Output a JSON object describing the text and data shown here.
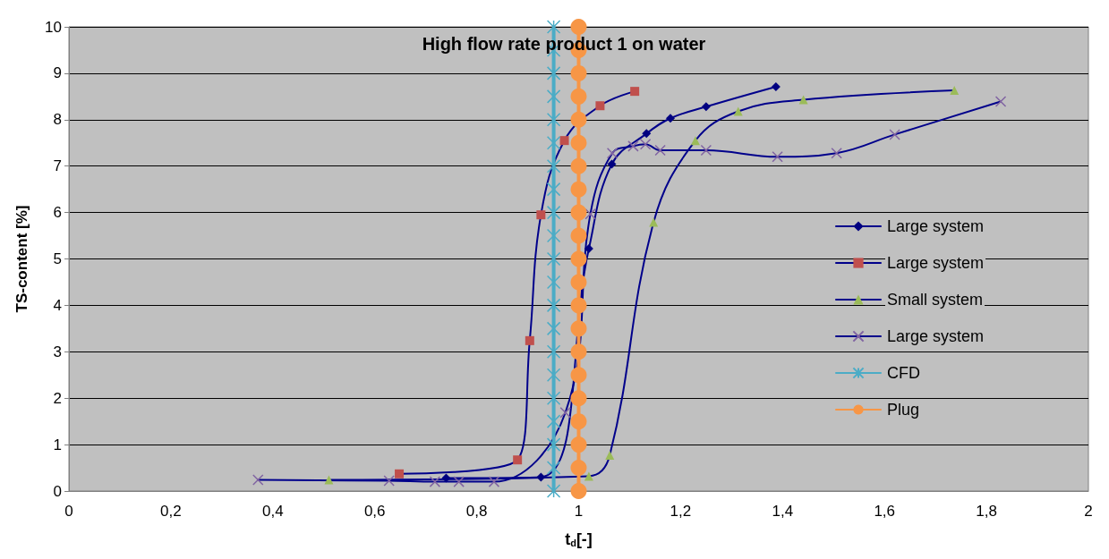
{
  "chart_data": {
    "type": "line",
    "title": "High flow rate product 1 on water",
    "xlabel": "t$_{d}$[-]",
    "ylabel": "TS-content [%]",
    "xlim": [
      0,
      2
    ],
    "xticks": [
      0,
      {
        "value": 0.2,
        "label": "0,2"
      },
      {
        "value": 0.4,
        "label": "0,4"
      },
      {
        "value": 0.6,
        "label": "0,6"
      },
      {
        "value": 0.8,
        "label": "0,8"
      },
      1,
      {
        "value": 1.2,
        "label": "1,2"
      },
      {
        "value": 1.4,
        "label": "1,4"
      },
      {
        "value": 1.6,
        "label": "1,6"
      },
      {
        "value": 1.8,
        "label": "1,8"
      },
      2
    ],
    "ylim": [
      0,
      10
    ],
    "yticks": [
      0,
      1,
      2,
      3,
      4,
      5,
      6,
      7,
      8,
      9,
      10
    ],
    "grid": "y",
    "legend": "right",
    "line_style": "solid",
    "series": [
      {
        "name": "Large system",
        "color": "#000080",
        "marker": "diamond",
        "x": [
          0.74,
          0.926,
          1.02,
          1.065,
          1.133,
          1.18,
          1.25,
          1.387
        ],
        "values": [
          0.28,
          0.3,
          5.22,
          7.04,
          7.7,
          8.03,
          8.28,
          8.71
        ]
      },
      {
        "name": "Large system",
        "color": "#c0504d",
        "marker": "square",
        "x": [
          0.648,
          0.88,
          0.904,
          0.926,
          0.972,
          1.042,
          1.11
        ],
        "values": [
          0.37,
          0.67,
          3.24,
          5.95,
          7.55,
          8.3,
          8.61
        ]
      },
      {
        "name": "Small system",
        "color": "#9bbb59",
        "marker": "triangle",
        "x": [
          0.51,
          1.02,
          1.061,
          1.147,
          1.229,
          1.313,
          1.441,
          1.737
        ],
        "values": [
          0.24,
          0.32,
          0.77,
          5.79,
          7.55,
          8.18,
          8.43,
          8.63
        ]
      },
      {
        "name": "Large system",
        "color": "#8064a2",
        "marker": "cross",
        "x": [
          0.371,
          0.628,
          0.718,
          0.765,
          0.834,
          0.974,
          1.023,
          1.066,
          1.107,
          1.131,
          1.16,
          1.25,
          1.39,
          1.506,
          1.62,
          1.828
        ],
        "values": [
          0.24,
          0.22,
          0.2,
          0.2,
          0.2,
          1.69,
          5.97,
          7.28,
          7.43,
          7.47,
          7.34,
          7.34,
          7.2,
          7.28,
          7.68,
          8.39
        ]
      },
      {
        "name": "CFD",
        "color": "#4bacc6",
        "marker": "star",
        "x": [
          0.951,
          0.951,
          0.951,
          0.951,
          0.951,
          0.951,
          0.951,
          0.951,
          0.951,
          0.951,
          0.951,
          0.951,
          0.951,
          0.951,
          0.951,
          0.951,
          0.951,
          0.951,
          0.951,
          0.951,
          0.951
        ],
        "values": [
          0,
          0.5,
          1,
          1.5,
          2,
          2.5,
          3,
          3.5,
          4,
          4.5,
          5,
          5.5,
          6,
          6.5,
          7,
          7.5,
          8,
          8.5,
          9,
          9.5,
          10
        ]
      },
      {
        "name": "Plug",
        "color": "#f79646",
        "marker": "circle",
        "x": [
          1,
          1,
          1,
          1,
          1,
          1,
          1,
          1,
          1,
          1,
          1,
          1,
          1,
          1,
          1,
          1,
          1,
          1,
          1,
          1,
          1
        ],
        "values": [
          0,
          0.5,
          1,
          1.5,
          2,
          2.5,
          3,
          3.5,
          4,
          4.5,
          5,
          5.5,
          6,
          6.5,
          7,
          7.5,
          8,
          8.5,
          9,
          9.5,
          10
        ]
      }
    ]
  }
}
